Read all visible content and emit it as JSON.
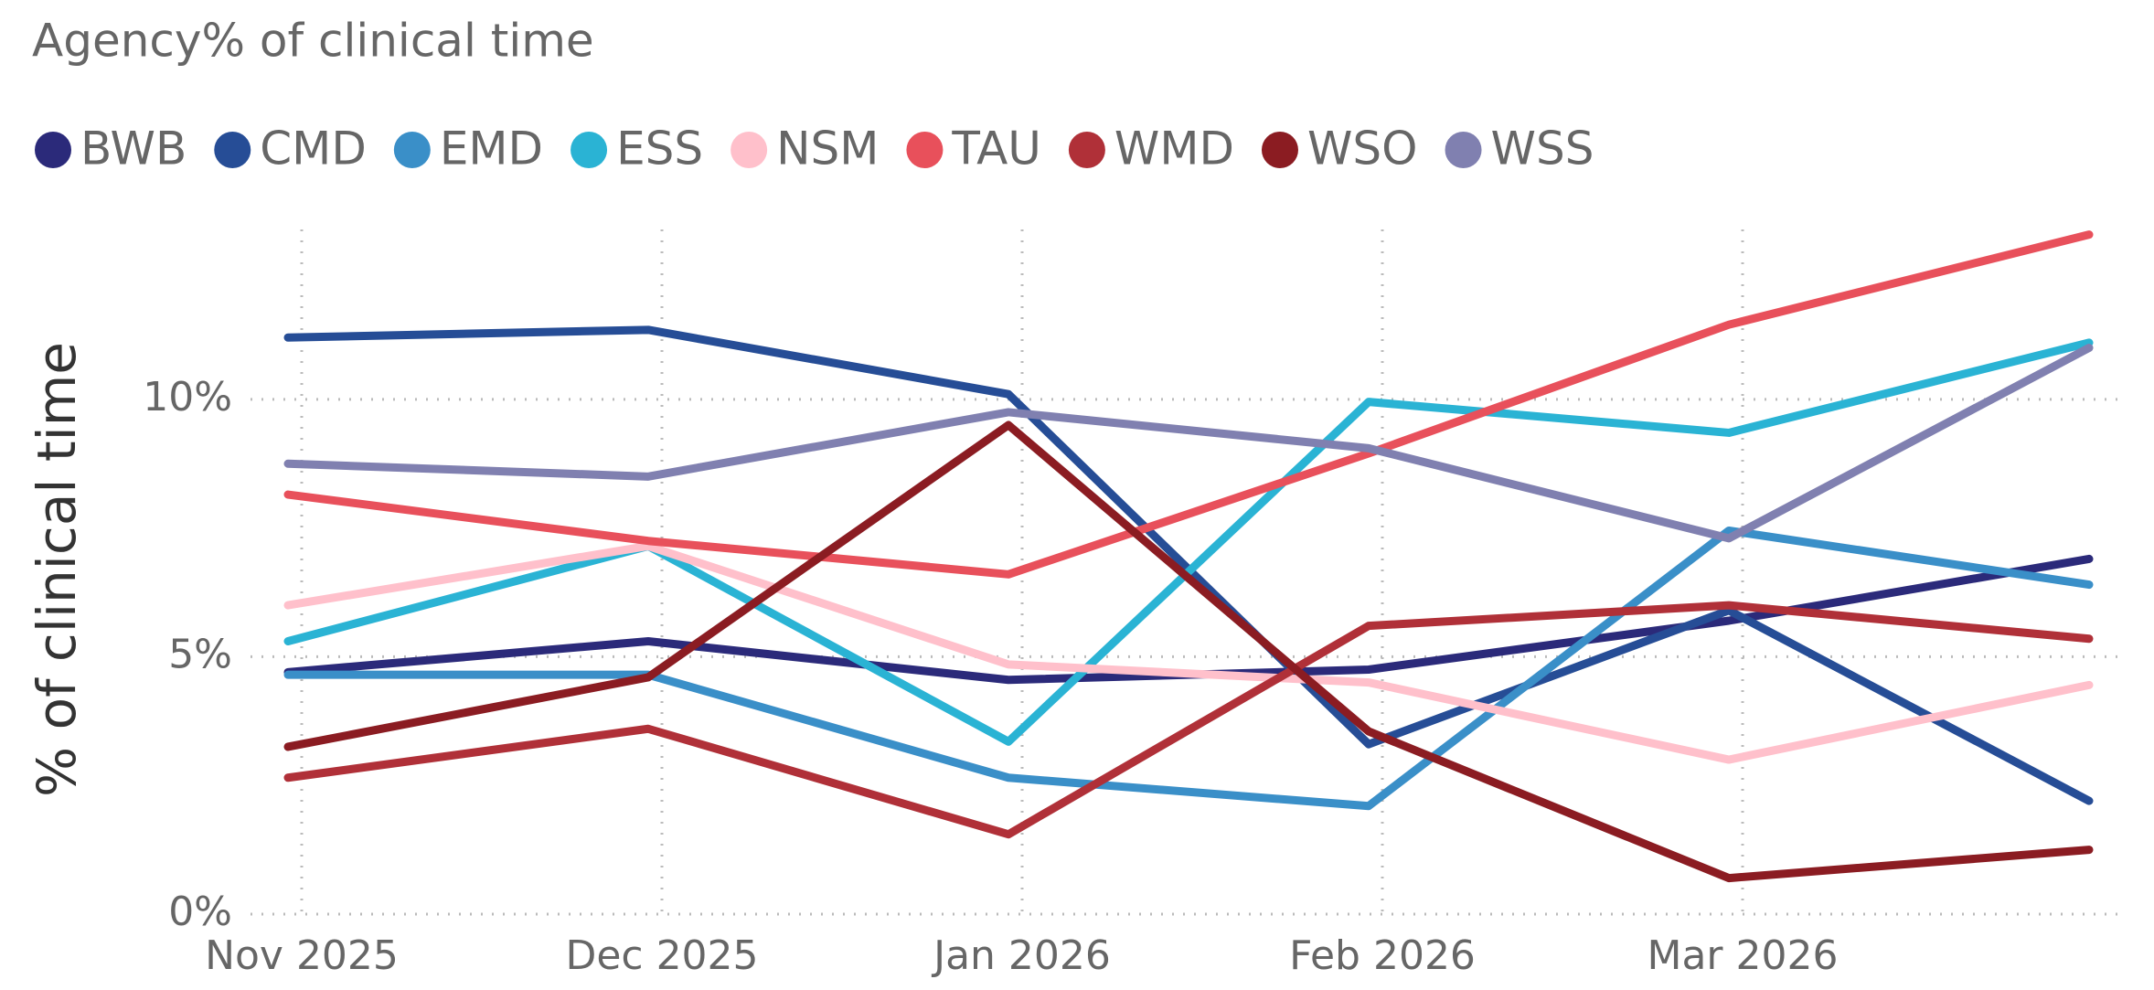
{
  "chart_data": {
    "type": "line",
    "title": "Agency% of clinical time",
    "y_label": "% of clinical time",
    "categories": [
      "Nov 2025",
      "Dec 2025",
      "Jan 2026",
      "Feb 2026",
      "Mar 2026",
      null
    ],
    "ylim": [
      0,
      13.3
    ],
    "yticks": [
      {
        "value": 0,
        "label": "0%"
      },
      {
        "value": 5,
        "label": "5%"
      },
      {
        "value": 10,
        "label": "10%"
      }
    ],
    "grid": true,
    "legend": "top-left",
    "series": [
      {
        "name": "BWB",
        "color": "#2b2a7a",
        "values": [
          4.7,
          5.3,
          4.55,
          4.75,
          5.7,
          6.9
        ]
      },
      {
        "name": "CMD",
        "color": "#264d96",
        "values": [
          11.2,
          11.35,
          10.1,
          3.3,
          5.9,
          2.2
        ]
      },
      {
        "name": "EMD",
        "color": "#3a8fc8",
        "values": [
          4.65,
          4.65,
          2.65,
          2.1,
          7.45,
          6.4
        ]
      },
      {
        "name": "ESS",
        "color": "#2ab3d4",
        "values": [
          5.3,
          7.15,
          3.35,
          9.95,
          9.35,
          11.1
        ]
      },
      {
        "name": "NSM",
        "color": "#ffc0cb",
        "values": [
          6.0,
          7.15,
          4.85,
          4.5,
          3.0,
          4.45
        ]
      },
      {
        "name": "TAU",
        "color": "#e8505b",
        "values": [
          8.15,
          7.25,
          6.6,
          8.95,
          11.45,
          13.2
        ]
      },
      {
        "name": "WMD",
        "color": "#b03038",
        "values": [
          2.65,
          3.6,
          1.55,
          5.6,
          6.0,
          5.35
        ]
      },
      {
        "name": "WSO",
        "color": "#8b1c22",
        "values": [
          3.25,
          4.6,
          9.5,
          3.55,
          0.7,
          1.25
        ]
      },
      {
        "name": "WSS",
        "color": "#8080b0",
        "values": [
          8.75,
          8.5,
          9.75,
          9.05,
          7.3,
          11.0
        ]
      }
    ]
  }
}
